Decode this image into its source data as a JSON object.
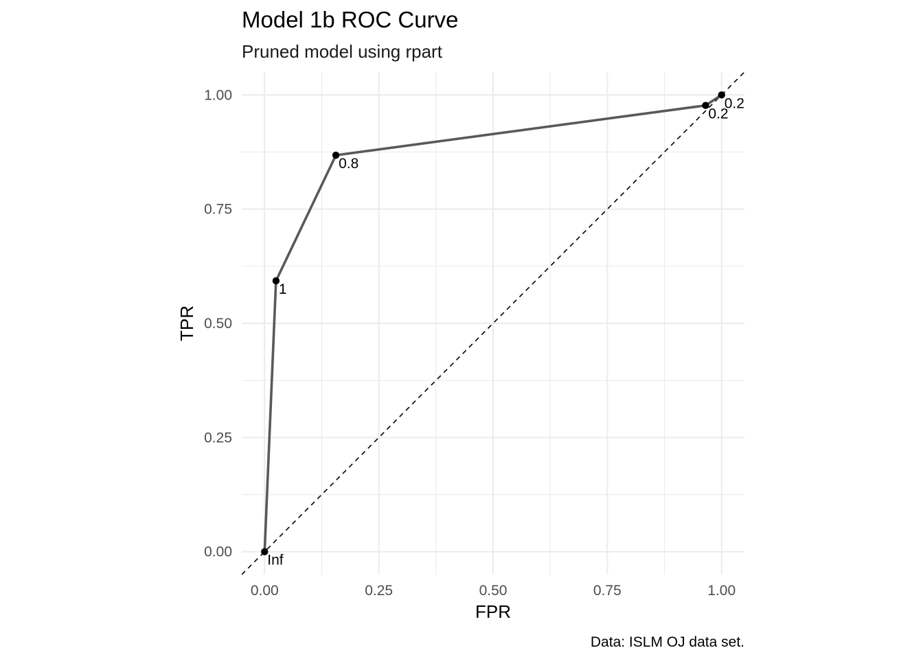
{
  "colors": {
    "curve": "#595959",
    "point": "#000000",
    "grid": "#ebebeb",
    "diagonal": "#000000",
    "background": "#ffffff"
  },
  "chart_data": {
    "type": "line",
    "title": "Model 1b ROC Curve",
    "subtitle": "Pruned model using rpart",
    "xlabel": "FPR",
    "ylabel": "TPR",
    "caption": "Data: ISLM OJ data set.",
    "xlim": [
      -0.05,
      1.05
    ],
    "ylim": [
      -0.05,
      1.05
    ],
    "x_ticks": [
      0.0,
      0.25,
      0.5,
      0.75,
      1.0
    ],
    "x_tick_labels": [
      "0.00",
      "0.25",
      "0.50",
      "0.75",
      "1.00"
    ],
    "y_ticks": [
      0.0,
      0.25,
      0.5,
      0.75,
      1.0
    ],
    "y_tick_labels": [
      "0.00",
      "0.25",
      "0.50",
      "0.75",
      "1.00"
    ],
    "grid": true,
    "reference_line": "y = x (dashed)",
    "points": [
      {
        "x": 0.0,
        "y": 0.0,
        "label": "Inf"
      },
      {
        "x": 0.025,
        "y": 0.593,
        "label": "1"
      },
      {
        "x": 0.156,
        "y": 0.868,
        "label": "0.8"
      },
      {
        "x": 0.965,
        "y": 0.977,
        "label": "0.2"
      },
      {
        "x": 1.0,
        "y": 1.0,
        "label": "0.2"
      }
    ]
  }
}
